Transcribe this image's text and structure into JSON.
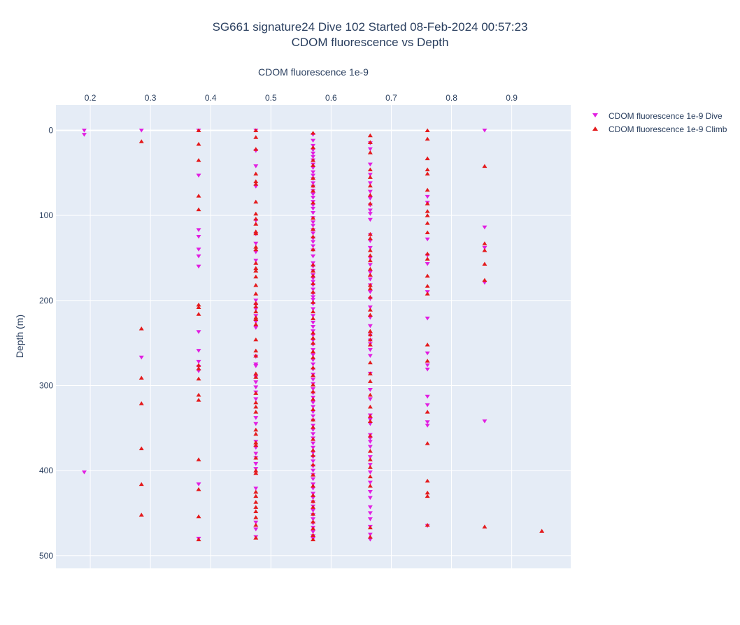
{
  "chart_data": {
    "type": "scatter",
    "title": "SG661 signature24 Dive 102 Started 08-Feb-2024 00:57:23",
    "subtitle": "CDOM fluorescence vs Depth",
    "xlabel": "CDOM fluorescence 1e-9",
    "ylabel": "Depth (m)",
    "xlim": [
      0.143,
      0.998
    ],
    "ylim": [
      515,
      -30
    ],
    "x_axis_side": "top",
    "y_reversed": true,
    "xticks": [
      0.2,
      0.3,
      0.4,
      0.5,
      0.6,
      0.7,
      0.8,
      0.9
    ],
    "xtick_labels": [
      "0.2",
      "0.3",
      "0.4",
      "0.5",
      "0.6",
      "0.7",
      "0.8",
      "0.9"
    ],
    "yticks": [
      0,
      100,
      200,
      300,
      400,
      500
    ],
    "ytick_labels": [
      "0",
      "100",
      "200",
      "300",
      "400",
      "500"
    ],
    "grid": true,
    "legend_position": "top-right outside",
    "series": [
      {
        "name": "CDOM fluorescence 1e-9 Dive",
        "color": "#e11ee1",
        "marker": "triangle-down",
        "columns": [
          {
            "x": 0.19,
            "depths": [
              0,
              5,
              402
            ]
          },
          {
            "x": 0.285,
            "depths": [
              0,
              267
            ]
          },
          {
            "x": 0.38,
            "depths": [
              0,
              53,
              117,
              125,
              140,
              148,
              160,
              237,
              259,
              272,
              278,
              283,
              416,
              480
            ]
          },
          {
            "x": 0.475,
            "depths": [
              0,
              24,
              42,
              66,
              106,
              122,
              133,
              143,
              153,
              200,
              205,
              210,
              218,
              225,
              232,
              266,
              275,
              277,
              290,
              296,
              302,
              308,
              316,
              338,
              345,
              366,
              373,
              380,
              385,
              392,
              398,
              421,
              461,
              469,
              478
            ]
          },
          {
            "x": 0.57,
            "depths": [
              5,
              12,
              18,
              23,
              27,
              31,
              35,
              40,
              44,
              49,
              53,
              57,
              62,
              66,
              71,
              75,
              79,
              84,
              88,
              92,
              97,
              103,
              108,
              112,
              117,
              121,
              127,
              131,
              136,
              141,
              148,
              156,
              160,
              165,
              170,
              174,
              178,
              182,
              187,
              192,
              196,
              199,
              204,
              210,
              218,
              226,
              231,
              236,
              241,
              247,
              252,
              258,
              264,
              270,
              275,
              281,
              287,
              293,
              298,
              304,
              309,
              314,
              320,
              325,
              331,
              336,
              341,
              347,
              352,
              357,
              362,
              368,
              373,
              379,
              384,
              389,
              395,
              400,
              405,
              410,
              416,
              421,
              427,
              432,
              437,
              442,
              447,
              452,
              457,
              462,
              467,
              472,
              477,
              480
            ]
          },
          {
            "x": 0.665,
            "depths": [
              15,
              22,
              40,
              52,
              62,
              72,
              80,
              88,
              94,
              98,
              105,
              123,
              130,
              138,
              150,
              158,
              167,
              175,
              182,
              190,
              198,
              208,
              220,
              230,
              241,
              247,
              251,
              258,
              265,
              286,
              305,
              316,
              335,
              340,
              345,
              358,
              362,
              366,
              372,
              384,
              393,
              402,
              414,
              425,
              432,
              443,
              450,
              457,
              466,
              475,
              481
            ]
          },
          {
            "x": 0.76,
            "depths": [
              78,
              85,
              128,
              147,
              157,
              190,
              221,
              262,
              276,
              281,
              313,
              323,
              343,
              347,
              465
            ]
          },
          {
            "x": 0.855,
            "depths": [
              0,
              114,
              138,
              179,
              342
            ]
          }
        ]
      },
      {
        "name": "CDOM fluorescence 1e-9 Climb",
        "color": "#e41a1c",
        "marker": "triangle-up",
        "columns": [
          {
            "x": 0.285,
            "depths": [
              13,
              233,
              291,
              321,
              374,
              416,
              452
            ]
          },
          {
            "x": 0.38,
            "depths": [
              0,
              16,
              35,
              77,
              93,
              205,
              208,
              216,
              276,
              280,
              292,
              311,
              317,
              387,
              422,
              454,
              481
            ]
          },
          {
            "x": 0.475,
            "depths": [
              0,
              8,
              22,
              51,
              60,
              63,
              84,
              98,
              104,
              110,
              119,
              121,
              137,
              140,
              156,
              162,
              165,
              172,
              182,
              192,
              203,
              207,
              213,
              220,
              222,
              228,
              246,
              259,
              265,
              286,
              290,
              309,
              320,
              325,
              331,
              352,
              357,
              367,
              370,
              385,
              400,
              403,
              425,
              430,
              437,
              443,
              448,
              455,
              464,
              479
            ]
          },
          {
            "x": 0.57,
            "depths": [
              3,
              20,
              35,
              41,
              56,
              65,
              71,
              85,
              103,
              116,
              125,
              140,
              158,
              165,
              171,
              180,
              190,
              202,
              213,
              221,
              238,
              244,
              250,
              260,
              267,
              279,
              288,
              299,
              307,
              316,
              328,
              340,
              349,
              363,
              376,
              382,
              393,
              405,
              418,
              429,
              436,
              443,
              451,
              460,
              468,
              476,
              481
            ]
          },
          {
            "x": 0.665,
            "depths": [
              6,
              14,
              26,
              46,
              55,
              65,
              76,
              86,
              122,
              127,
              141,
              147,
              153,
              163,
              170,
              182,
              186,
              196,
              211,
              217,
              236,
              240,
              246,
              252,
              273,
              286,
              295,
              311,
              325,
              336,
              342,
              359,
              377,
              387,
              396,
              407,
              418,
              467,
              478
            ]
          },
          {
            "x": 0.76,
            "depths": [
              0,
              10,
              33,
              46,
              51,
              70,
              86,
              95,
              100,
              109,
              120,
              145,
              151,
              171,
              183,
              192,
              252,
              271,
              331,
              368,
              412,
              426,
              430,
              464
            ]
          },
          {
            "x": 0.855,
            "depths": [
              42,
              133,
              141,
              157,
              176,
              466
            ]
          },
          {
            "x": 0.95,
            "depths": [
              471
            ]
          }
        ]
      }
    ]
  }
}
